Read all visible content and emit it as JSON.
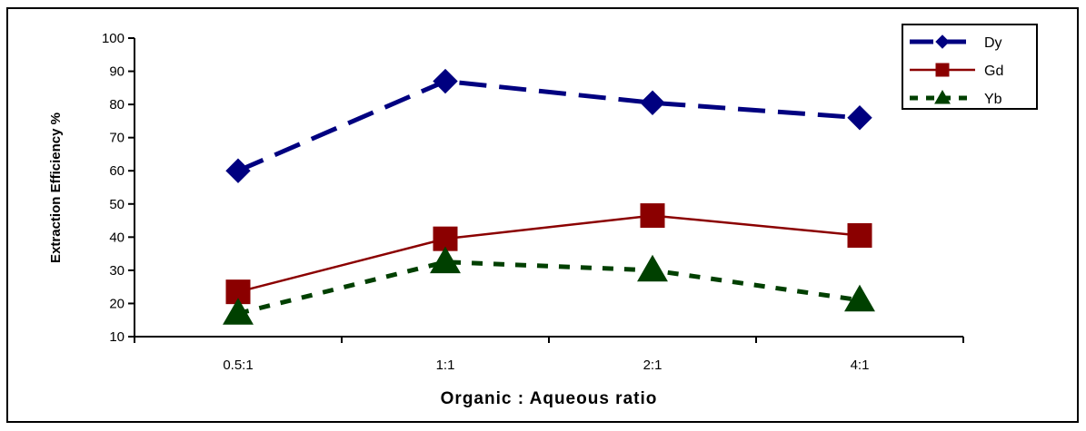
{
  "chart_data": {
    "type": "line",
    "title": "",
    "xlabel": "Organic : Aqueous ratio",
    "ylabel": "Extraction Efficiency %",
    "categories": [
      "0.5:1",
      "1:1",
      "2:1",
      "4:1"
    ],
    "ylim": [
      10,
      100
    ],
    "yticks": [
      10,
      20,
      30,
      40,
      50,
      60,
      70,
      80,
      90,
      100
    ],
    "grid": false,
    "legend_position": "top-right",
    "series": [
      {
        "name": "Dy",
        "values": [
          60,
          87,
          80.5,
          76
        ],
        "color": "#000080",
        "line_style": "long-dash",
        "marker": "diamond"
      },
      {
        "name": "Gd",
        "values": [
          23.5,
          39.5,
          46.5,
          40.5
        ],
        "color": "#8B0000",
        "line_style": "solid",
        "marker": "square"
      },
      {
        "name": "Yb",
        "values": [
          17,
          32.5,
          30,
          21
        ],
        "color": "#004000",
        "line_style": "dotted",
        "marker": "triangle"
      }
    ]
  }
}
